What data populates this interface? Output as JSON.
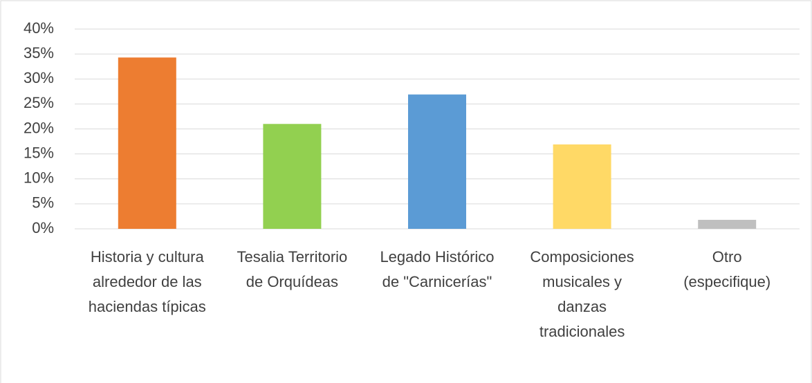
{
  "chart_data": {
    "type": "bar",
    "categories": [
      "Historia y cultura alrededor de las haciendas típicas",
      "Tesalia Territorio de Orquídeas",
      "Legado Histórico de \"Carnicerías\"",
      "Composiciones musicales y danzas tradicionales",
      "Otro (especifique)"
    ],
    "values": [
      34.3,
      21.0,
      26.9,
      16.9,
      1.8
    ],
    "colors": [
      "#ed7d31",
      "#92d050",
      "#5b9bd5",
      "#ffd966",
      "#bfbfbf"
    ],
    "ylim": [
      0,
      40
    ],
    "yticks": [
      {
        "value": 0,
        "label": "0%"
      },
      {
        "value": 5,
        "label": "5%"
      },
      {
        "value": 10,
        "label": "10%"
      },
      {
        "value": 15,
        "label": "15%"
      },
      {
        "value": 20,
        "label": "20%"
      },
      {
        "value": 25,
        "label": "25%"
      },
      {
        "value": 30,
        "label": "30%"
      },
      {
        "value": 35,
        "label": "35%"
      },
      {
        "value": 40,
        "label": "40%"
      }
    ],
    "grid": true
  }
}
